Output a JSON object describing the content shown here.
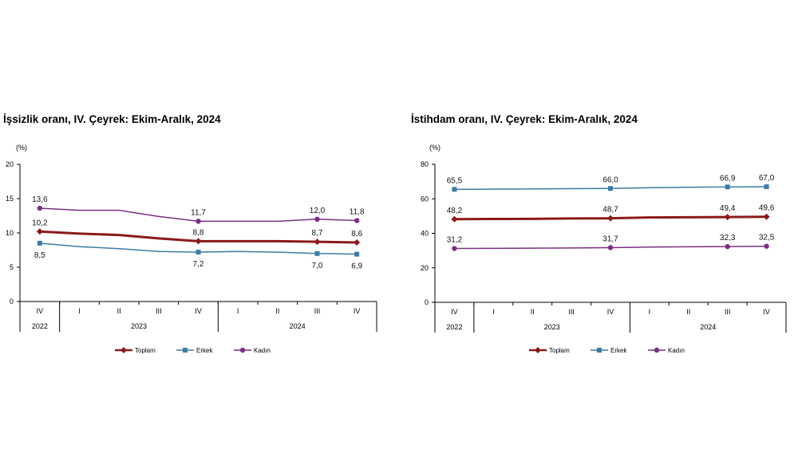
{
  "chart_data": [
    {
      "type": "line",
      "title": "İşsizlik oranı, IV. Çeyrek: Ekim-Aralık, 2024",
      "unit": "(%)",
      "ylim": [
        0,
        20
      ],
      "yticks": [
        0,
        5,
        10,
        15,
        20
      ],
      "categories": [
        "IV",
        "I",
        "II",
        "III",
        "IV",
        "I",
        "II",
        "III",
        "IV"
      ],
      "years": [
        {
          "label": "2022",
          "span": [
            0,
            0
          ]
        },
        {
          "label": "2023",
          "span": [
            1,
            4
          ]
        },
        {
          "label": "2024",
          "span": [
            5,
            8
          ]
        }
      ],
      "series": [
        {
          "name": "Toplam",
          "color": "#8b1a1a",
          "marker": "diamond",
          "width": 3,
          "values": [
            10.2,
            9.9,
            9.7,
            9.2,
            8.8,
            8.8,
            8.8,
            8.7,
            8.6
          ],
          "labels": {
            "0": "10,2",
            "4": "8,8",
            "7": "8,7",
            "8": "8,6"
          },
          "label_pos": {
            "0": "above",
            "4": "above",
            "7": "above",
            "8": "above"
          }
        },
        {
          "name": "Erkek",
          "color": "#3a7ca5",
          "marker": "square",
          "width": 1.5,
          "values": [
            8.5,
            8.0,
            7.7,
            7.3,
            7.2,
            7.3,
            7.2,
            7.0,
            6.9
          ],
          "labels": {
            "0": "8,5",
            "4": "7,2",
            "7": "7,0",
            "8": "6,9"
          },
          "label_pos": {
            "0": "below",
            "4": "below",
            "7": "below",
            "8": "below"
          }
        },
        {
          "name": "Kadın",
          "color": "#7b2e83",
          "marker": "circle",
          "width": 1.5,
          "values": [
            13.6,
            13.3,
            13.3,
            12.4,
            11.7,
            11.7,
            11.7,
            12.0,
            11.8
          ],
          "labels": {
            "0": "13,6",
            "4": "11,7",
            "7": "12,0",
            "8": "11,8"
          },
          "label_pos": {
            "0": "above",
            "4": "above",
            "7": "above",
            "8": "above"
          }
        }
      ],
      "legend": "bottom"
    },
    {
      "type": "line",
      "title": "İstihdam oranı, IV. Çeyrek: Ekim-Aralık, 2024",
      "unit": "(%)",
      "ylim": [
        0,
        80
      ],
      "yticks": [
        0,
        20,
        40,
        60,
        80
      ],
      "categories": [
        "IV",
        "I",
        "II",
        "III",
        "IV",
        "I",
        "II",
        "III",
        "IV"
      ],
      "years": [
        {
          "label": "2022",
          "span": [
            0,
            0
          ]
        },
        {
          "label": "2023",
          "span": [
            1,
            4
          ]
        },
        {
          "label": "2024",
          "span": [
            5,
            8
          ]
        }
      ],
      "series": [
        {
          "name": "Toplam",
          "color": "#8b1a1a",
          "marker": "diamond",
          "width": 3,
          "values": [
            48.2,
            48.3,
            48.4,
            48.6,
            48.7,
            49.2,
            49.3,
            49.4,
            49.6
          ],
          "labels": {
            "0": "48,2",
            "4": "48,7",
            "7": "49,4",
            "8": "49,6"
          },
          "label_pos": {
            "0": "above",
            "4": "above",
            "7": "above",
            "8": "above"
          }
        },
        {
          "name": "Erkek",
          "color": "#3a7ca5",
          "marker": "square",
          "width": 1.5,
          "values": [
            65.5,
            65.6,
            65.7,
            65.9,
            66.0,
            66.4,
            66.7,
            66.9,
            67.0
          ],
          "labels": {
            "0": "65,5",
            "4": "66,0",
            "7": "66,9",
            "8": "67,0"
          },
          "label_pos": {
            "0": "above",
            "4": "above",
            "7": "above",
            "8": "above"
          }
        },
        {
          "name": "Kadın",
          "color": "#7b2e83",
          "marker": "circle",
          "width": 1.5,
          "values": [
            31.2,
            31.3,
            31.4,
            31.5,
            31.7,
            32.0,
            32.2,
            32.3,
            32.5
          ],
          "labels": {
            "0": "31,2",
            "4": "31,7",
            "7": "32,3",
            "8": "32,5"
          },
          "label_pos": {
            "0": "above",
            "4": "above",
            "7": "above",
            "8": "above"
          }
        }
      ],
      "legend": "bottom"
    }
  ]
}
